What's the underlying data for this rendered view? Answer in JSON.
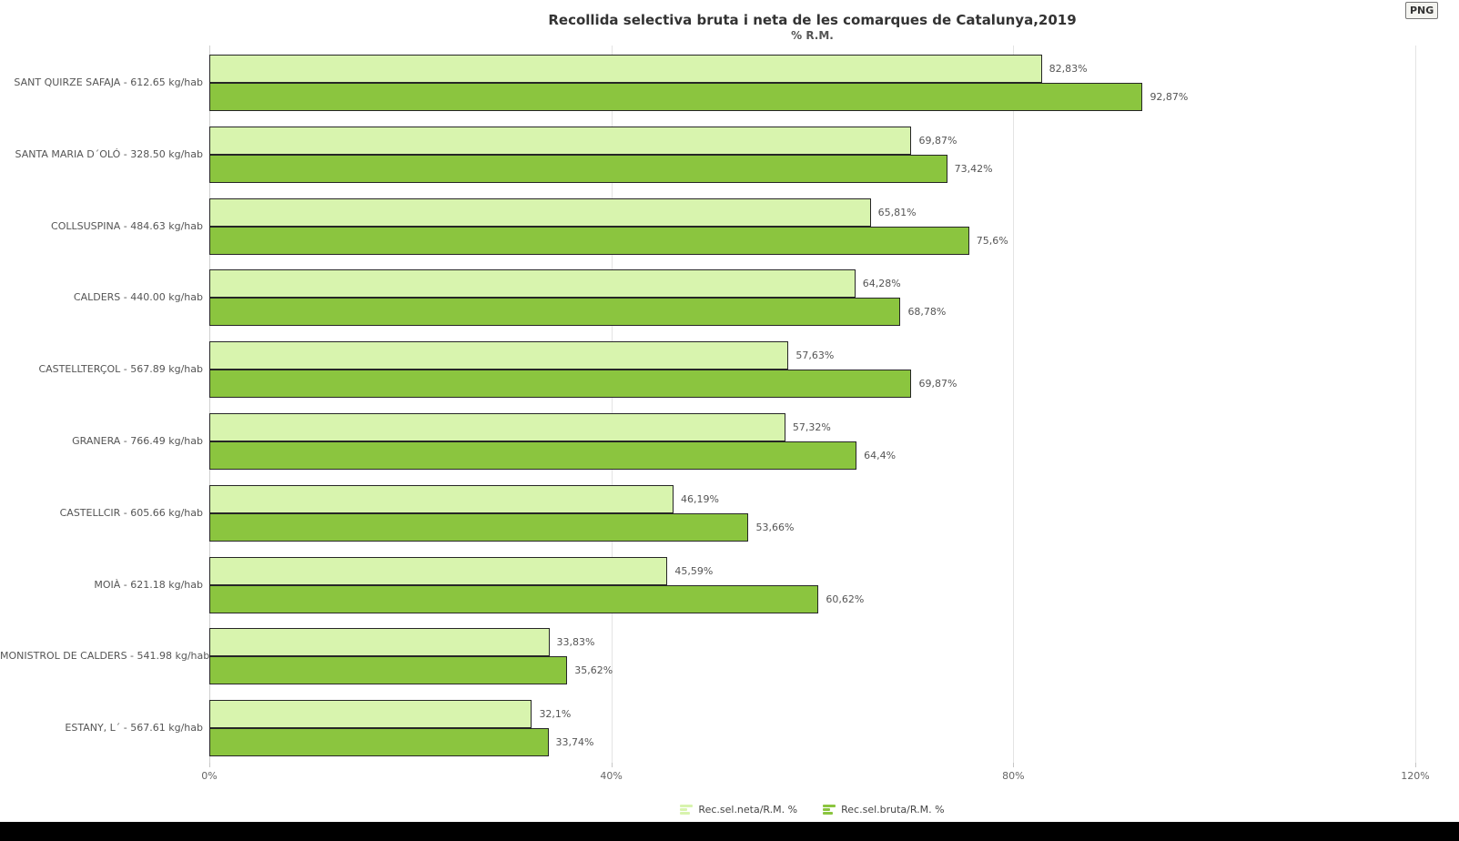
{
  "toolbar": {
    "export_label": "PNG"
  },
  "chart_data": {
    "type": "bar",
    "orientation": "horizontal",
    "title": "Recollida selectiva bruta i neta de les comarques de Catalunya,2019",
    "subtitle": "% R.M.",
    "categories": [
      "SANT QUIRZE SAFAJA - 612.65 kg/hab",
      "SANTA MARIA D´OLÓ - 328.50 kg/hab",
      "COLLSUSPINA - 484.63 kg/hab",
      "CALDERS - 440.00 kg/hab",
      "CASTELLTERÇOL - 567.89 kg/hab",
      "GRANERA - 766.49 kg/hab",
      "CASTELLCIR - 605.66 kg/hab",
      "MOIÀ - 621.18 kg/hab",
      "MONISTROL DE CALDERS - 541.98 kg/hab",
      "ESTANY, L´ - 567.61 kg/hab"
    ],
    "series": [
      {
        "name": "Rec.sel.neta/R.M. %",
        "color": "#d8f4ae",
        "border_color": "#262626",
        "values": [
          82.83,
          69.87,
          65.81,
          64.28,
          57.63,
          57.32,
          46.19,
          45.59,
          33.83,
          32.1
        ],
        "labels": [
          "82,83%",
          "69,87%",
          "65,81%",
          "64,28%",
          "57,63%",
          "57,32%",
          "46,19%",
          "45,59%",
          "33,83%",
          "32,1%"
        ]
      },
      {
        "name": "Rec.sel.bruta/R.M. %",
        "color": "#8bc53f",
        "border_color": "#262626",
        "values": [
          92.87,
          73.42,
          75.6,
          68.78,
          69.87,
          64.4,
          53.66,
          60.62,
          35.62,
          33.74
        ],
        "labels": [
          "92,87%",
          "73,42%",
          "75,6%",
          "68,78%",
          "69,87%",
          "64,4%",
          "53,66%",
          "60,62%",
          "35,62%",
          "33,74%"
        ]
      }
    ],
    "xlim": [
      0,
      120
    ],
    "x_ticks": [
      {
        "value": 0,
        "label": "0%"
      },
      {
        "value": 40,
        "label": "40%"
      },
      {
        "value": 80,
        "label": "80%"
      },
      {
        "value": 120,
        "label": "120%"
      }
    ],
    "grid": true,
    "legend_position": "bottom"
  }
}
